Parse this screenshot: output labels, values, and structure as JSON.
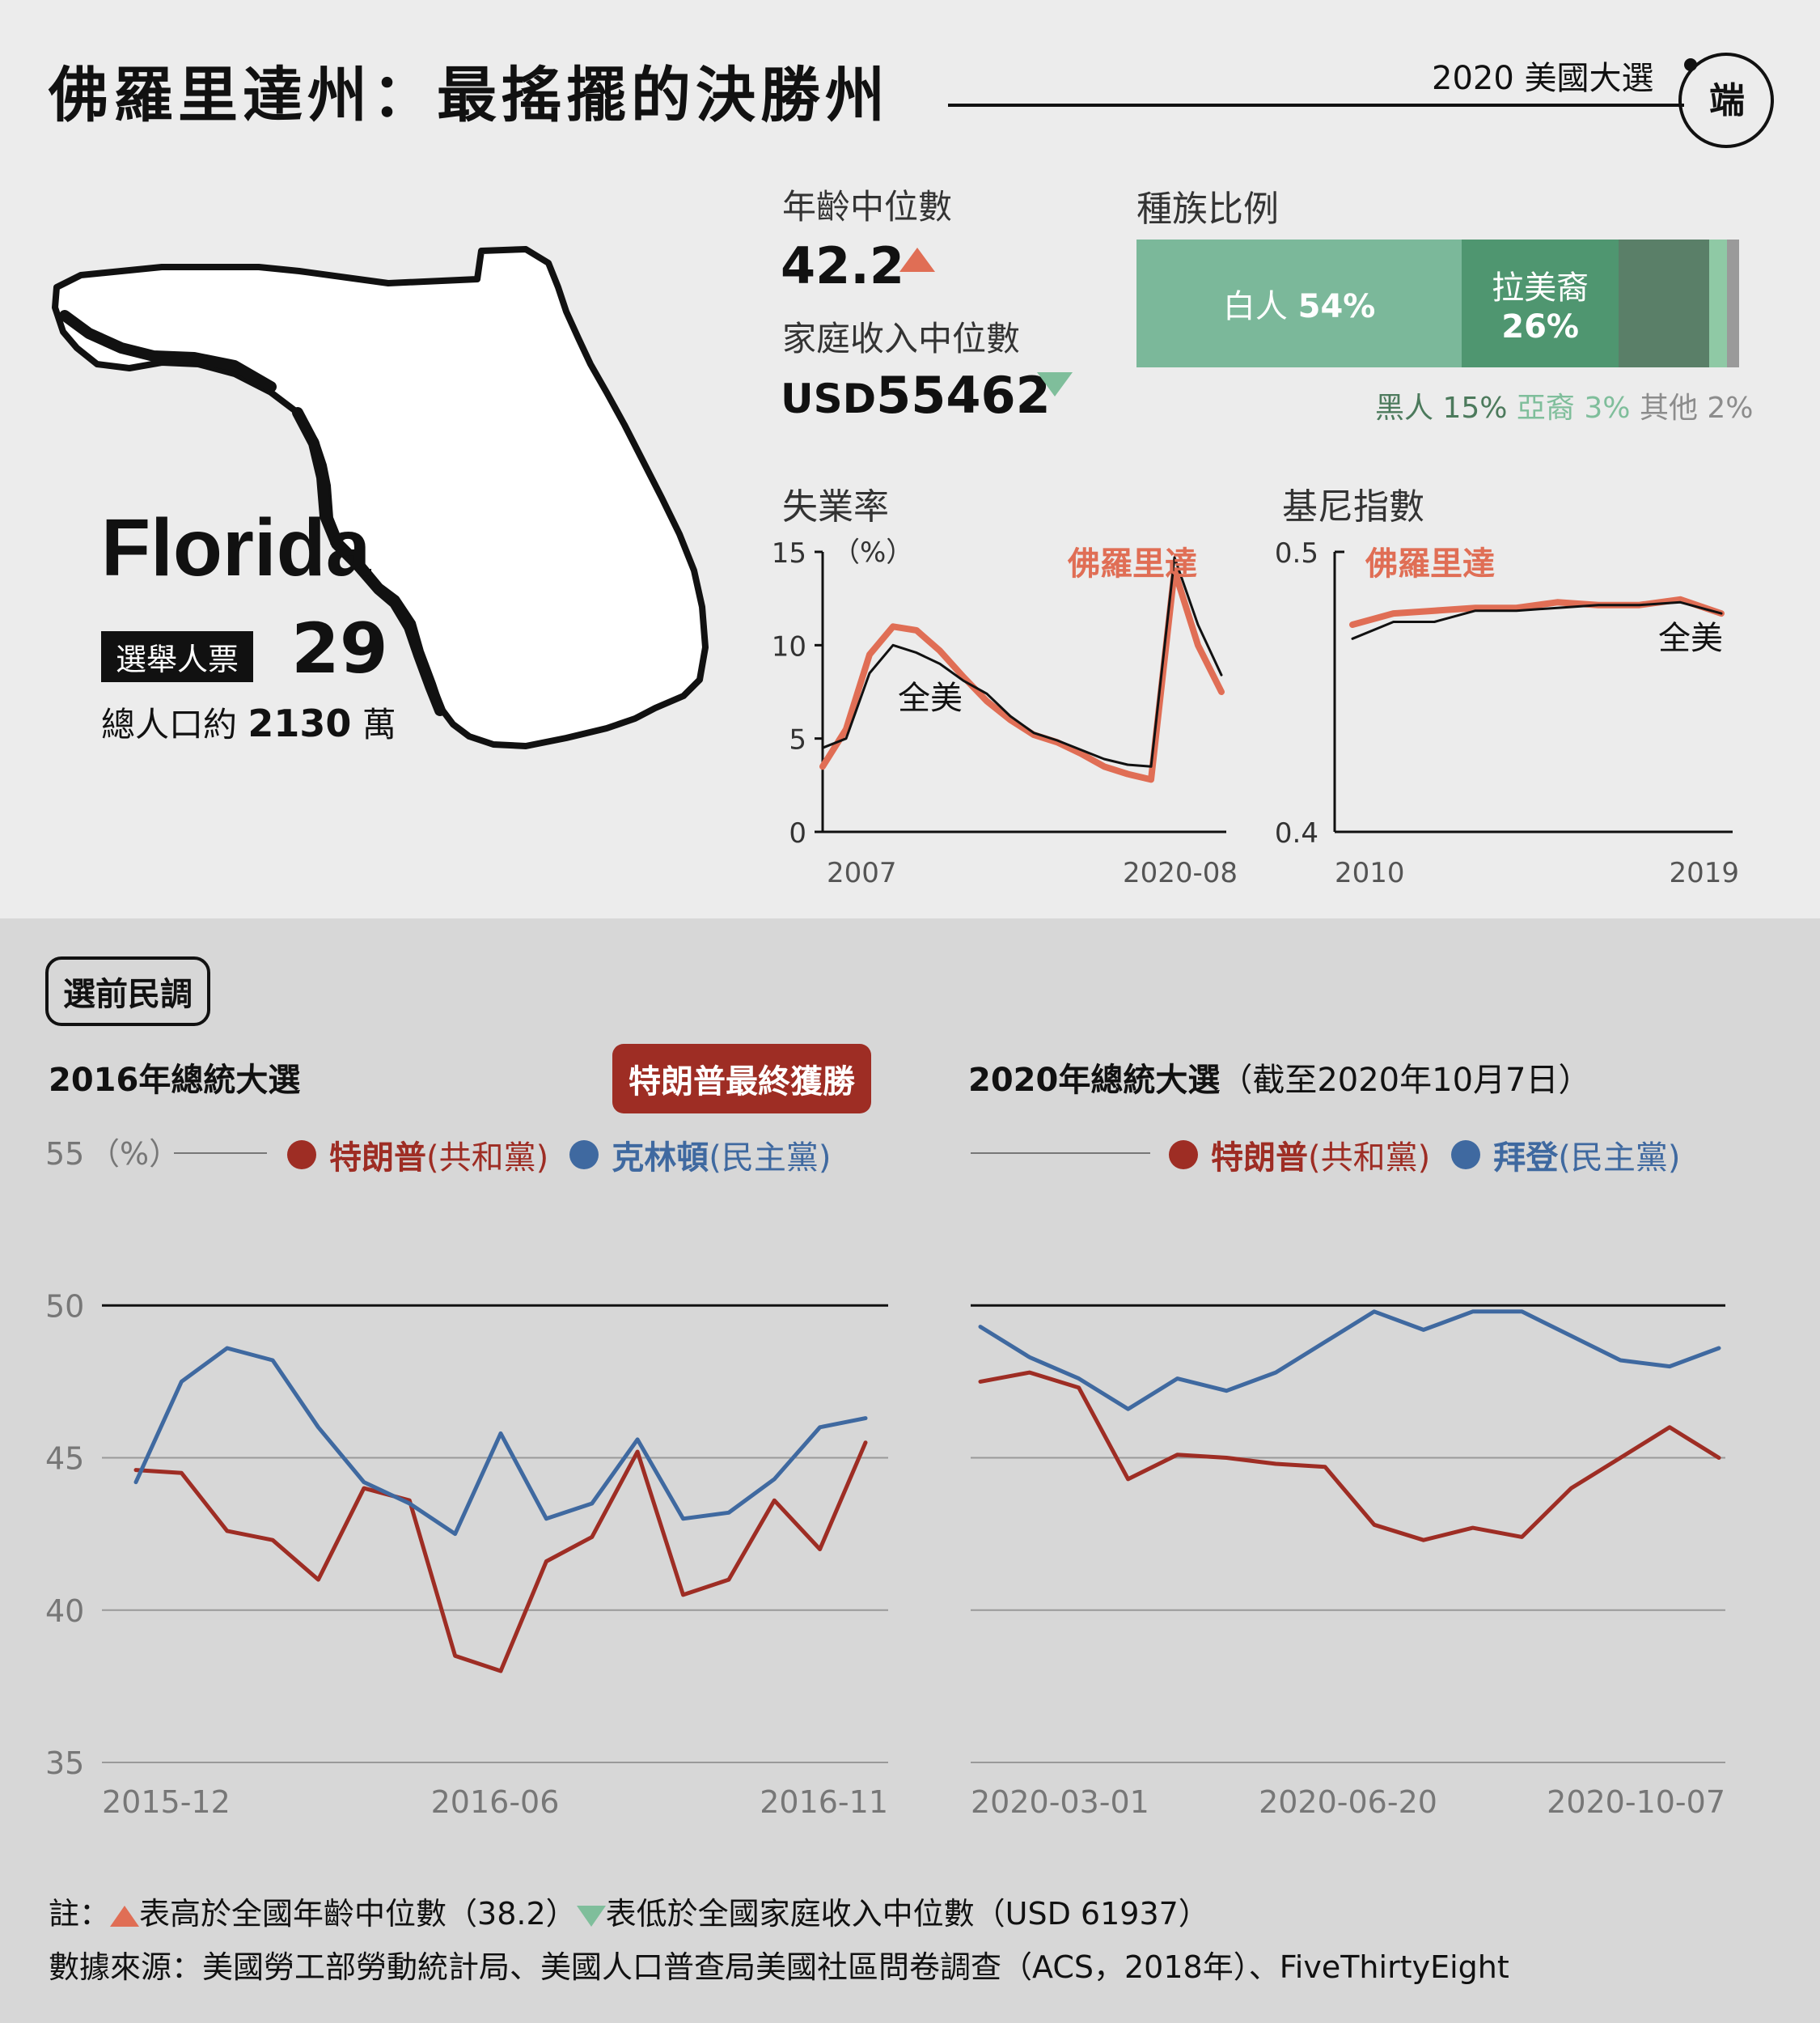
{
  "header": {
    "title": "佛羅里達州：最搖擺的決勝州",
    "series_tag": "2020 美國大選",
    "logo_glyph": "端"
  },
  "state": {
    "name": "Florida",
    "electoral_votes_label": "選舉人票",
    "electoral_votes": "29",
    "population_prefix": "總人口約",
    "population_value": "2130",
    "population_unit": "萬"
  },
  "stats": {
    "median_age_label": "年齡中位數",
    "median_age": "42.2",
    "median_income_label": "家庭收入中位數",
    "median_income_prefix": "USD",
    "median_income": "55462",
    "up_color": "#e06e55",
    "down_color": "#7fbe9b"
  },
  "race": {
    "title": "種族比例",
    "segments": [
      {
        "name": "白人",
        "value": "54%",
        "share": 54,
        "color": "#7bb89a"
      },
      {
        "name": "拉美裔",
        "value": "26%",
        "share": 26,
        "color": "#4f9670"
      },
      {
        "name": "黑人",
        "value": "15%",
        "share": 15,
        "color": "#5a7f68"
      },
      {
        "name": "亞裔",
        "value": "3%",
        "share": 3,
        "color": "#8fc9a5"
      },
      {
        "name": "其他",
        "value": "2%",
        "share": 2,
        "color": "#9a9a9a"
      }
    ],
    "legend": {
      "black": "黑人 15%",
      "asian": "亞裔 3%",
      "other": "其他 2%",
      "black_color": "#4c7a5c",
      "asian_color": "#7fbe9b",
      "other_color": "#8c8c8c"
    }
  },
  "chart_data": [
    {
      "type": "line",
      "title": "失業率",
      "ylabel": "（%）",
      "ylim": [
        0,
        15
      ],
      "y_ticks": [
        "15",
        "10",
        "5",
        "0"
      ],
      "x_ticks": [
        "2007",
        "2020-08"
      ],
      "series": [
        {
          "name": "佛羅里達",
          "color": "#e06e55",
          "x": [
            "2007",
            "2008",
            "2009-03",
            "2009-10",
            "2010-06",
            "2011",
            "2012",
            "2013",
            "2014",
            "2015",
            "2016",
            "2017",
            "2018",
            "2019",
            "2020-02",
            "2020-04",
            "2020-06",
            "2020-08"
          ],
          "values": [
            3.5,
            5.5,
            9.5,
            11.0,
            10.8,
            9.7,
            8.3,
            7.0,
            6.0,
            5.2,
            4.8,
            4.2,
            3.5,
            3.1,
            2.8,
            14.0,
            10.0,
            7.5
          ]
        },
        {
          "name": "全美",
          "color": "#111111",
          "x": [
            "2007",
            "2008",
            "2009-03",
            "2009-10",
            "2010-06",
            "2011",
            "2012",
            "2013",
            "2014",
            "2015",
            "2016",
            "2017",
            "2018",
            "2019",
            "2020-02",
            "2020-04",
            "2020-06",
            "2020-08"
          ],
          "values": [
            4.5,
            5.0,
            8.5,
            10.0,
            9.6,
            9.0,
            8.1,
            7.4,
            6.2,
            5.3,
            4.9,
            4.4,
            3.9,
            3.6,
            3.5,
            14.7,
            11.1,
            8.4
          ]
        }
      ]
    },
    {
      "type": "line",
      "title": "基尼指數",
      "ylim": [
        0.4,
        0.5
      ],
      "y_ticks": [
        "0.5",
        "0.4"
      ],
      "x_ticks": [
        "2010",
        "2019"
      ],
      "series": [
        {
          "name": "佛羅里達",
          "color": "#e06e55",
          "x": [
            "2010",
            "2011",
            "2012",
            "2013",
            "2014",
            "2015",
            "2016",
            "2017",
            "2018",
            "2019"
          ],
          "values": [
            0.474,
            0.478,
            0.479,
            0.48,
            0.48,
            0.482,
            0.481,
            0.481,
            0.483,
            0.478
          ]
        },
        {
          "name": "全美",
          "color": "#111111",
          "x": [
            "2010",
            "2011",
            "2012",
            "2013",
            "2014",
            "2015",
            "2016",
            "2017",
            "2018",
            "2019"
          ],
          "values": [
            0.469,
            0.475,
            0.475,
            0.479,
            0.479,
            0.48,
            0.481,
            0.481,
            0.482,
            0.478
          ]
        }
      ]
    },
    {
      "type": "line",
      "title": "2016年總統大選",
      "ylabel": "（%）",
      "ylim": [
        35,
        55
      ],
      "y_ticks": [
        "55",
        "50",
        "45",
        "40",
        "35"
      ],
      "x_ticks": [
        "2015-12",
        "2016-06",
        "2016-11"
      ],
      "series": [
        {
          "name": "特朗普",
          "color": "#9e2d24",
          "x": [
            "2015-12",
            "2016-01",
            "2016-02",
            "2016-03",
            "2016-04",
            "2016-05",
            "2016-06",
            "2016-06b",
            "2016-07",
            "2016-07b",
            "2016-08",
            "2016-08b",
            "2016-09",
            "2016-09b",
            "2016-10",
            "2016-10b",
            "2016-11"
          ],
          "values": [
            44.6,
            44.5,
            42.6,
            42.3,
            41.0,
            44.0,
            43.6,
            38.5,
            38.0,
            41.6,
            42.4,
            45.2,
            40.5,
            41.0,
            43.6,
            42.0,
            45.5
          ]
        },
        {
          "name": "克林頓",
          "color": "#3f69a0",
          "x": [
            "2015-12",
            "2016-01",
            "2016-02",
            "2016-03",
            "2016-04",
            "2016-05",
            "2016-06",
            "2016-06b",
            "2016-07",
            "2016-07b",
            "2016-08",
            "2016-08b",
            "2016-09",
            "2016-09b",
            "2016-10",
            "2016-10b",
            "2016-11"
          ],
          "values": [
            44.2,
            47.5,
            48.6,
            48.2,
            46.0,
            44.2,
            43.5,
            42.5,
            45.8,
            43.0,
            43.5,
            45.6,
            43.0,
            43.2,
            44.3,
            46.0,
            46.3
          ]
        }
      ]
    },
    {
      "type": "line",
      "title": "2020年總統大選",
      "x_ticks": [
        "2020-03-01",
        "2020-06-20",
        "2020-10-07"
      ],
      "ylim": [
        35,
        55
      ],
      "series": [
        {
          "name": "特朗普",
          "color": "#9e2d24",
          "x": [
            "2020-03-01",
            "2020-03-15",
            "2020-04-01",
            "2020-04-15",
            "2020-05-01",
            "2020-05-15",
            "2020-06-01",
            "2020-06-20",
            "2020-07-01",
            "2020-07-15",
            "2020-08-01",
            "2020-08-15",
            "2020-09-01",
            "2020-09-15",
            "2020-10-01",
            "2020-10-07"
          ],
          "values": [
            47.5,
            47.8,
            47.3,
            44.3,
            45.1,
            45.0,
            44.8,
            44.7,
            42.8,
            42.3,
            42.7,
            42.4,
            44.0,
            45.0,
            46.0,
            45.0
          ]
        },
        {
          "name": "拜登",
          "color": "#3f69a0",
          "x": [
            "2020-03-01",
            "2020-03-15",
            "2020-04-01",
            "2020-04-15",
            "2020-05-01",
            "2020-05-15",
            "2020-06-01",
            "2020-06-20",
            "2020-07-01",
            "2020-07-15",
            "2020-08-01",
            "2020-08-15",
            "2020-09-01",
            "2020-09-15",
            "2020-10-01",
            "2020-10-07"
          ],
          "values": [
            49.3,
            48.3,
            47.6,
            46.6,
            47.6,
            47.2,
            47.8,
            48.8,
            49.8,
            49.2,
            49.8,
            49.8,
            49.0,
            48.2,
            48.0,
            48.6
          ]
        }
      ]
    }
  ],
  "small_charts": {
    "unemployment": {
      "fl_label": "佛羅里達",
      "us_label": "全美",
      "unit": "（%）"
    },
    "gini": {
      "fl_label": "佛羅里達",
      "us_label": "全美"
    }
  },
  "polls": {
    "section_title": "選前民調",
    "c2016": {
      "title": "2016年總統大選",
      "winner": "特朗普最終獲勝",
      "unit": "（%）",
      "trump": "特朗普",
      "trump_party": "(共和黨)",
      "clinton": "克林頓",
      "clinton_party": "(民主黨)"
    },
    "c2020": {
      "title": "2020年總統大選",
      "subtitle": "（截至2020年10月7日）",
      "trump": "特朗普",
      "trump_party": "(共和黨)",
      "biden": "拜登",
      "biden_party": "(民主黨)"
    },
    "trump_color": "#9e2d24",
    "dem_color": "#3f69a0"
  },
  "footer": {
    "note_prefix": "註：",
    "note_up": "表高於全國年齡中位數（38.2）",
    "note_down": "表低於全國家庭收入中位數（USD 61937）",
    "source": "數據來源：美國勞工部勞動統計局、美國人口普查局美國社區問卷調查（ACS，2018年）、FiveThirtyEight"
  }
}
